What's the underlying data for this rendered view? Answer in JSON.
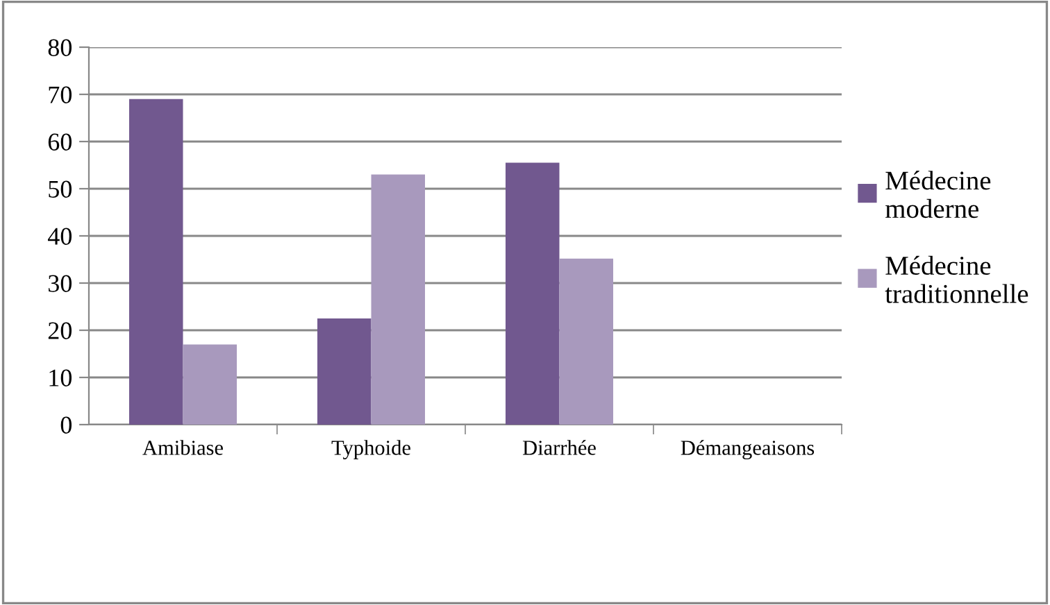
{
  "chart_data": {
    "type": "bar",
    "categories": [
      "Amibiase",
      "Typhoide",
      "Diarrhée",
      "Démangeaisons"
    ],
    "series": [
      {
        "name": "Médecine moderne",
        "color": "#71588f",
        "values": [
          69,
          22.5,
          55.5,
          0
        ]
      },
      {
        "name": "Médecine traditionnelle",
        "color": "#a899bd",
        "values": [
          17,
          53,
          35.2,
          0
        ]
      }
    ],
    "ylim": [
      0,
      80
    ],
    "yticks": [
      0,
      10,
      20,
      30,
      40,
      50,
      60,
      70,
      80
    ],
    "grid": "y",
    "legend": "right"
  }
}
